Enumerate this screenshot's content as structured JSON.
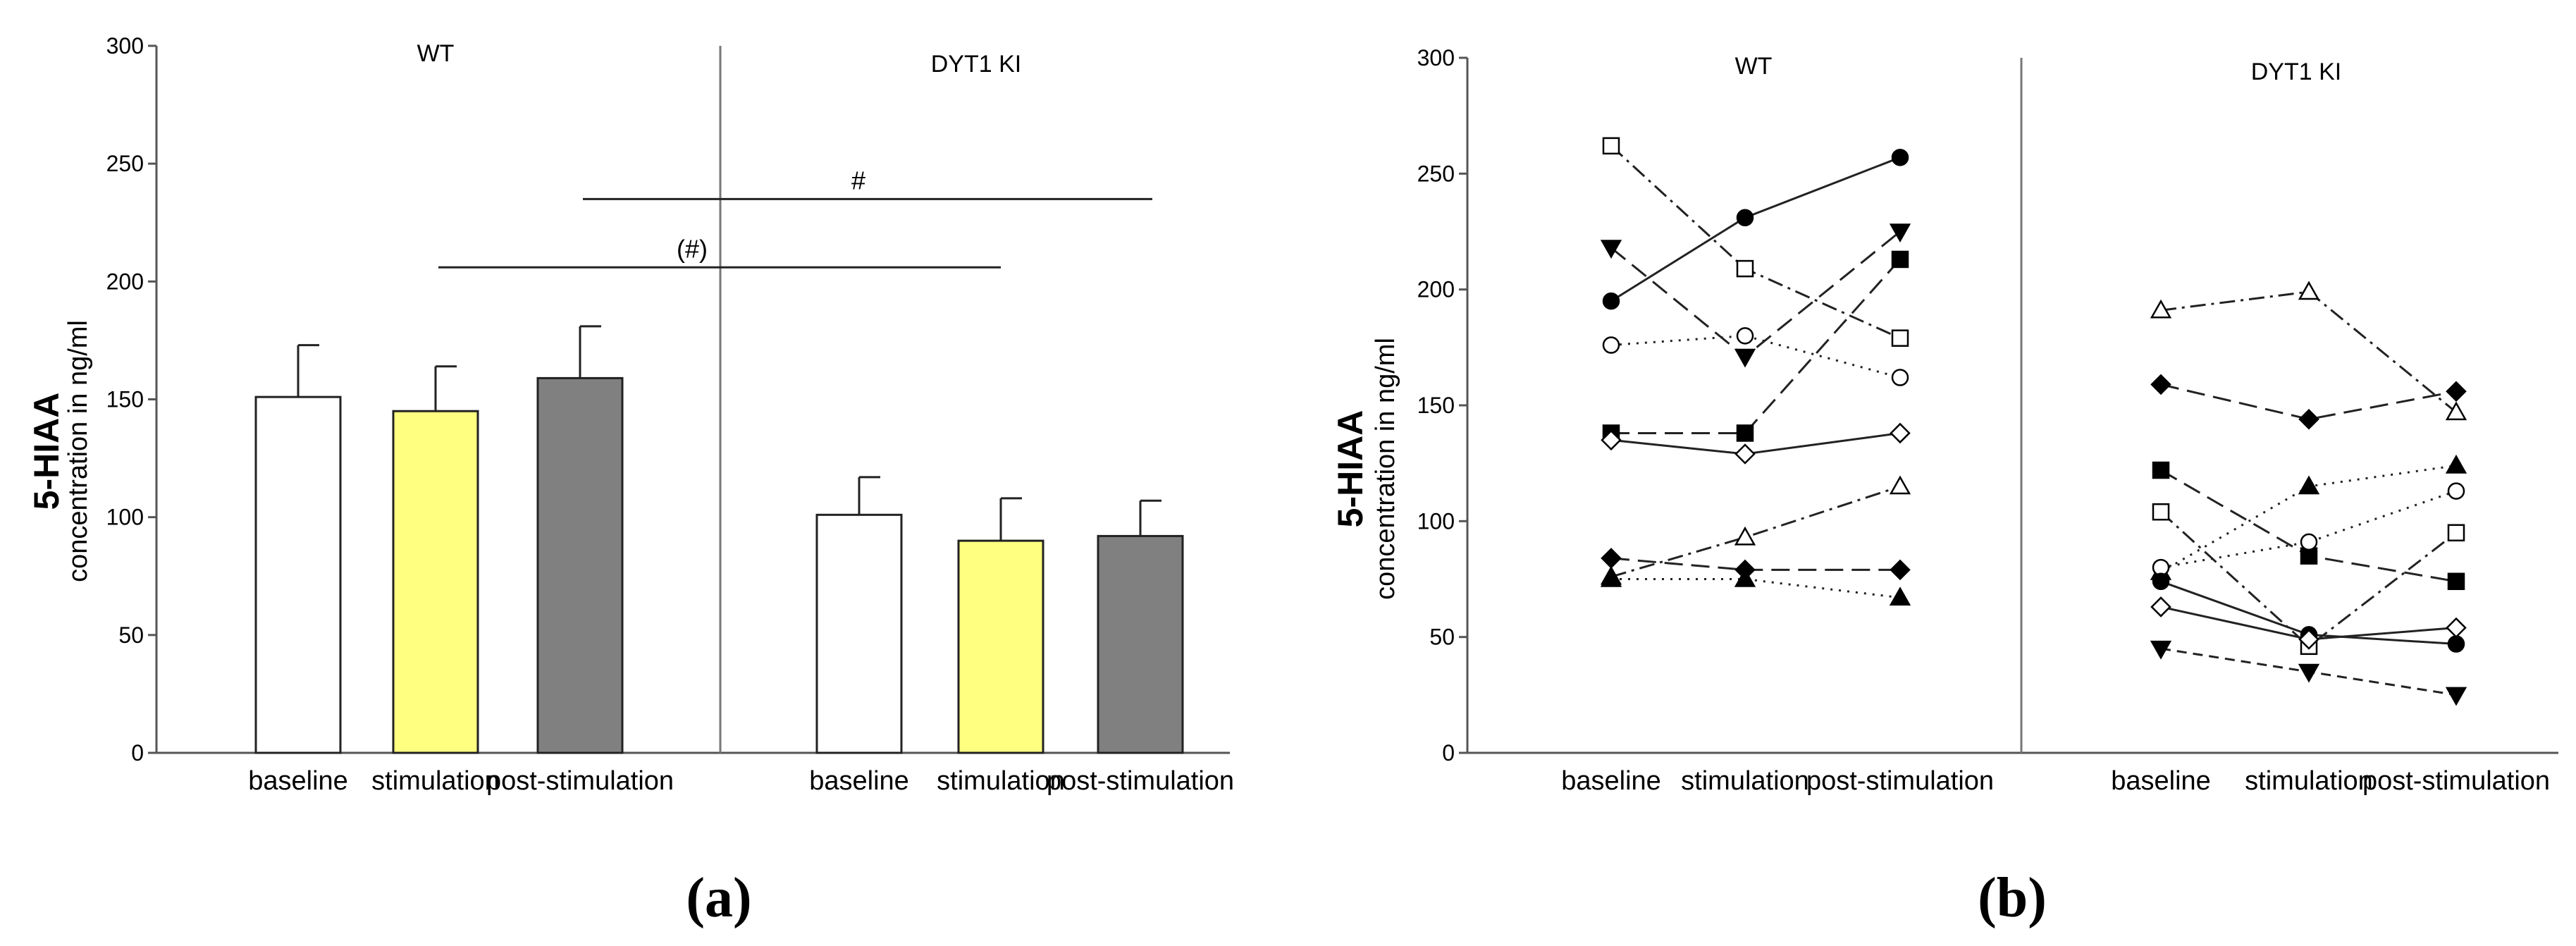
{
  "chart_data": [
    {
      "type": "bar",
      "panel_label": "(a)",
      "ylabel_main": "5-HIAA",
      "ylabel_sub": "concentration in ng/ml",
      "ylim": [
        0,
        300
      ],
      "yticks": [
        0,
        50,
        100,
        150,
        200,
        250,
        300
      ],
      "groups": [
        {
          "name": "WT",
          "categories": [
            "baseline",
            "stimulation",
            "post-stimulation"
          ],
          "values": [
            151,
            145,
            159
          ],
          "errors": [
            22,
            19,
            22
          ]
        },
        {
          "name": "DYT1 KI",
          "categories": [
            "baseline",
            "stimulation",
            "post-stimulation"
          ],
          "values": [
            101,
            90,
            92
          ],
          "errors": [
            16,
            18,
            15
          ]
        }
      ],
      "bar_colors": [
        "#ffffff",
        "#ffff80",
        "#808080"
      ],
      "significance": [
        {
          "label": "#",
          "y": 235
        },
        {
          "label": "(#)",
          "y": 206
        }
      ]
    },
    {
      "type": "line",
      "panel_label": "(b)",
      "ylabel_main": "5-HIAA",
      "ylabel_sub": "concentration in ng/ml",
      "ylim": [
        0,
        300
      ],
      "yticks": [
        0,
        50,
        100,
        150,
        200,
        250,
        300
      ],
      "groups": [
        {
          "name": "WT",
          "categories": [
            "baseline",
            "stimulation",
            "post-stimulation"
          ],
          "series": [
            {
              "marker": "square-open",
              "dash": "dashdot",
              "values": [
                262,
                209,
                179
              ]
            },
            {
              "marker": "circle-filled",
              "dash": "solid",
              "values": [
                195,
                231,
                257
              ]
            },
            {
              "marker": "triangle-down-filled",
              "dash": "longdash",
              "values": [
                218,
                171,
                225
              ]
            },
            {
              "marker": "square-filled",
              "dash": "longdash",
              "values": [
                138,
                138,
                213
              ]
            },
            {
              "marker": "circle-open",
              "dash": "dotted",
              "values": [
                176,
                180,
                162
              ]
            },
            {
              "marker": "diamond-open",
              "dash": "solid",
              "values": [
                135,
                129,
                138
              ]
            },
            {
              "marker": "triangle-up-open",
              "dash": "dashdot",
              "values": [
                76,
                93,
                115
              ]
            },
            {
              "marker": "diamond-filled",
              "dash": "longdash",
              "values": [
                84,
                79,
                79
              ]
            },
            {
              "marker": "triangle-up-filled",
              "dash": "dotted",
              "values": [
                75,
                75,
                67
              ]
            }
          ]
        },
        {
          "name": "DYT1 KI",
          "categories": [
            "baseline",
            "stimulation",
            "post-stimulation"
          ],
          "series": [
            {
              "marker": "triangle-up-open",
              "dash": "dashdot",
              "values": [
                191,
                199,
                147
              ]
            },
            {
              "marker": "diamond-filled",
              "dash": "longdash",
              "values": [
                159,
                144,
                156
              ]
            },
            {
              "marker": "square-filled",
              "dash": "longdash",
              "values": [
                122,
                85,
                74
              ]
            },
            {
              "marker": "triangle-up-filled",
              "dash": "dotted",
              "values": [
                78,
                115,
                124
              ]
            },
            {
              "marker": "circle-open",
              "dash": "dotted",
              "values": [
                80,
                91,
                113
              ]
            },
            {
              "marker": "square-open",
              "dash": "dashdot",
              "values": [
                104,
                46,
                95
              ]
            },
            {
              "marker": "circle-filled",
              "dash": "solid",
              "values": [
                74,
                51,
                47
              ]
            },
            {
              "marker": "diamond-open",
              "dash": "solid",
              "values": [
                63,
                49,
                54
              ]
            },
            {
              "marker": "triangle-down-filled",
              "dash": "shortdash",
              "values": [
                45,
                35,
                25
              ]
            }
          ]
        }
      ]
    }
  ]
}
